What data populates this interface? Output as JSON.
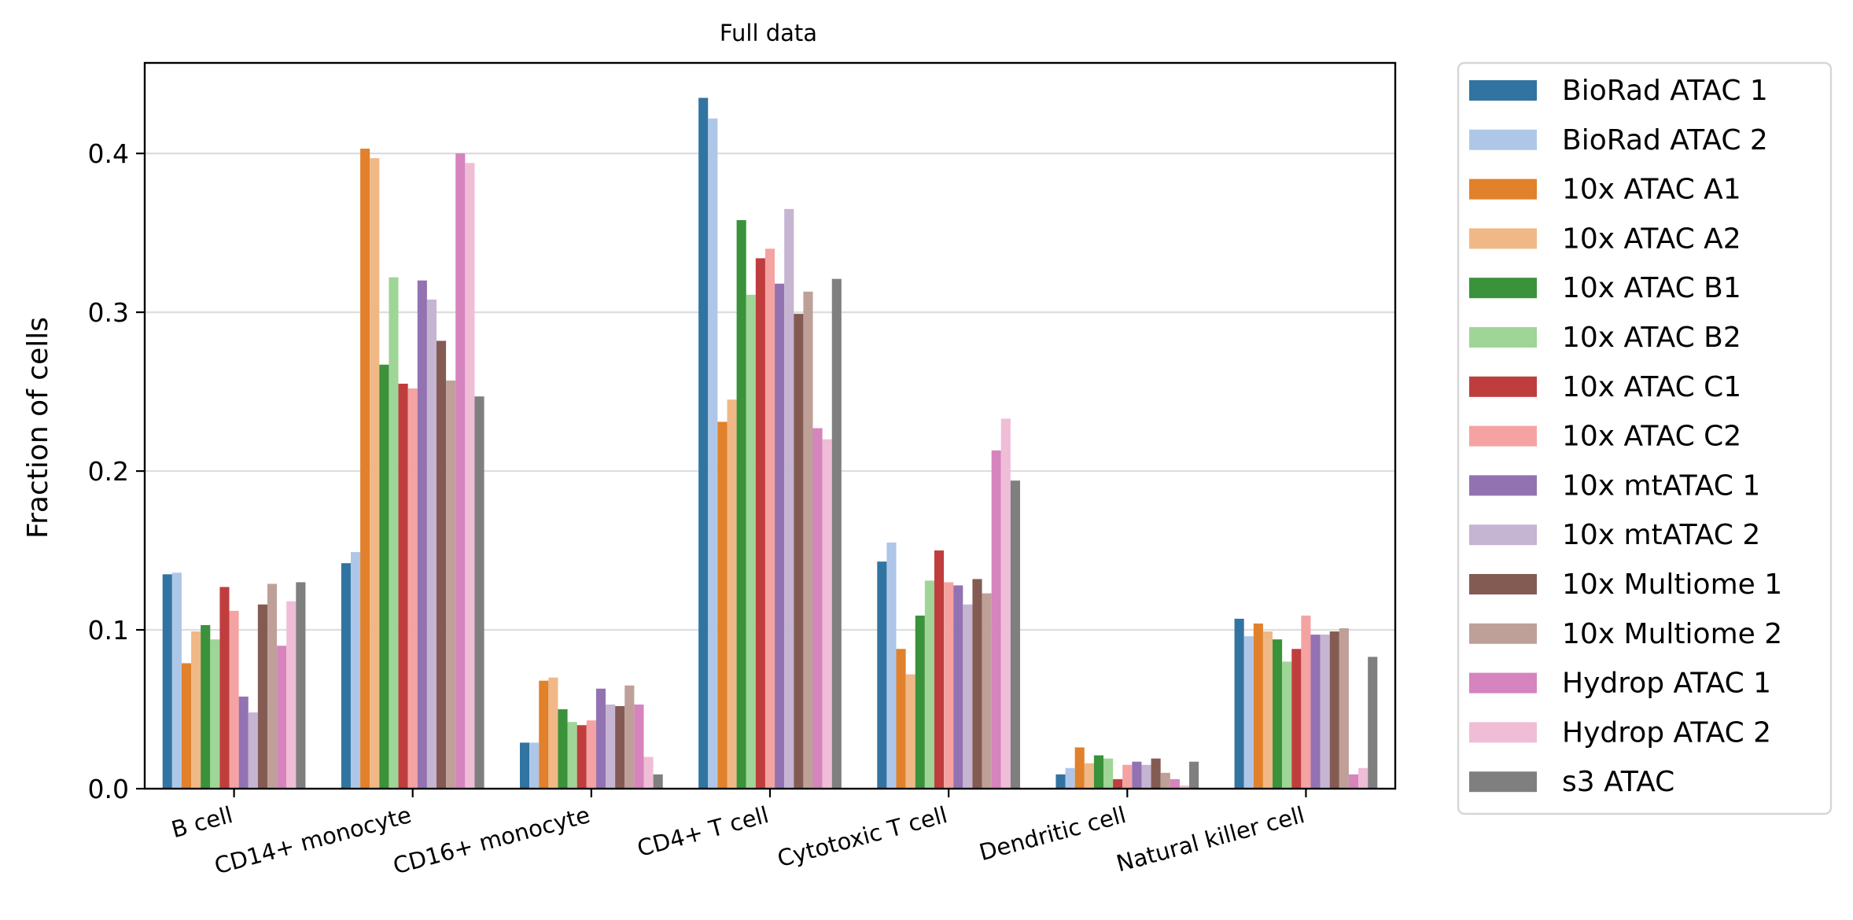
{
  "chart_data": {
    "type": "bar",
    "title": "Full data",
    "xlabel": "",
    "ylabel": "Fraction of cells",
    "ylim": [
      0,
      0.457
    ],
    "yticks": [
      0.0,
      0.1,
      0.2,
      0.3,
      0.4
    ],
    "ytick_labels": [
      "0.0",
      "0.1",
      "0.2",
      "0.3",
      "0.4"
    ],
    "grid": "horizontal",
    "legend_position": "outside right",
    "categories": [
      "B cell",
      "CD14+ monocyte",
      "CD16+ monocyte",
      "CD4+ T cell",
      "Cytotoxic T cell",
      "Dendritic cell",
      "Natural killer cell"
    ],
    "series": [
      {
        "name": "BioRad ATAC 1",
        "color": "#3274a1",
        "values": [
          0.135,
          0.142,
          0.029,
          0.435,
          0.143,
          0.009,
          0.107
        ]
      },
      {
        "name": "BioRad ATAC 2",
        "color": "#aec7e8",
        "values": [
          0.136,
          0.149,
          0.029,
          0.422,
          0.155,
          0.013,
          0.096
        ]
      },
      {
        "name": "10x ATAC A1",
        "color": "#e1812c",
        "values": [
          0.079,
          0.403,
          0.068,
          0.231,
          0.088,
          0.026,
          0.104
        ]
      },
      {
        "name": "10x ATAC A2",
        "color": "#f0b886",
        "values": [
          0.099,
          0.397,
          0.07,
          0.245,
          0.072,
          0.016,
          0.099
        ]
      },
      {
        "name": "10x ATAC B1",
        "color": "#3a923a",
        "values": [
          0.103,
          0.267,
          0.05,
          0.358,
          0.109,
          0.021,
          0.094
        ]
      },
      {
        "name": "10x ATAC B2",
        "color": "#9fd596",
        "values": [
          0.094,
          0.322,
          0.042,
          0.311,
          0.131,
          0.019,
          0.08
        ]
      },
      {
        "name": "10x ATAC C1",
        "color": "#c03d3e",
        "values": [
          0.127,
          0.255,
          0.04,
          0.334,
          0.15,
          0.006,
          0.088
        ]
      },
      {
        "name": "10x ATAC C2",
        "color": "#f4a3a2",
        "values": [
          0.112,
          0.252,
          0.043,
          0.34,
          0.13,
          0.015,
          0.109
        ]
      },
      {
        "name": "10x mtATAC 1",
        "color": "#9372b2",
        "values": [
          0.058,
          0.32,
          0.063,
          0.318,
          0.128,
          0.017,
          0.097
        ]
      },
      {
        "name": "10x mtATAC 2",
        "color": "#c5b4d2",
        "values": [
          0.048,
          0.308,
          0.053,
          0.365,
          0.116,
          0.015,
          0.097
        ]
      },
      {
        "name": "10x Multiome 1",
        "color": "#845b53",
        "values": [
          0.116,
          0.282,
          0.052,
          0.299,
          0.132,
          0.019,
          0.099
        ]
      },
      {
        "name": "10x Multiome 2",
        "color": "#bfa098",
        "values": [
          0.129,
          0.257,
          0.065,
          0.313,
          0.123,
          0.01,
          0.101
        ]
      },
      {
        "name": "Hydrop ATAC 1",
        "color": "#d684bd",
        "values": [
          0.09,
          0.4,
          0.053,
          0.227,
          0.213,
          0.006,
          0.009
        ]
      },
      {
        "name": "Hydrop ATAC 2",
        "color": "#f0bdd6",
        "values": [
          0.118,
          0.394,
          0.02,
          0.22,
          0.233,
          0.002,
          0.013
        ]
      },
      {
        "name": "s3 ATAC",
        "color": "#7f7f7f",
        "values": [
          0.13,
          0.247,
          0.009,
          0.321,
          0.194,
          0.017,
          0.083
        ]
      }
    ]
  }
}
